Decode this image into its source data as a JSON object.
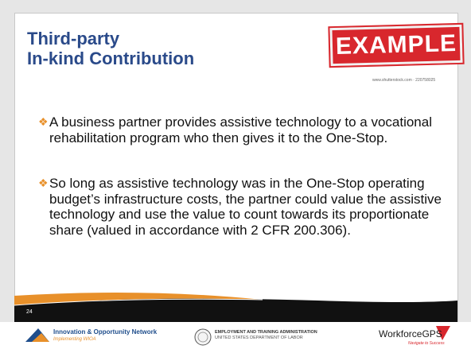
{
  "title": {
    "lines": [
      "Third-party",
      "In-kind Contribution"
    ]
  },
  "stamp": {
    "text": "EXAMPLE",
    "credit": "www.shutterstock.com · 220758025"
  },
  "bullets": [
    "A business partner provides assistive technology to a vocational rehabilitation program who then gives it to the One-Stop.",
    "So long as assistive technology was in the One-Stop operating budget’s infrastructure costs, the partner could value the assistive technology and use the value to count towards its proportionate share (valued in accordance with 2 CFR 200.306)."
  ],
  "slide_number": "24",
  "footer": {
    "network": "Innovation & Opportunity Network",
    "network_tagline": "Implementing WIOA",
    "agency": "EMPLOYMENT AND TRAINING ADMINISTRATION",
    "department": "UNITED STATES DEPARTMENT OF LABOR",
    "brand": "WorkforceGPS",
    "brand_tagline": "Navigate to Success"
  }
}
